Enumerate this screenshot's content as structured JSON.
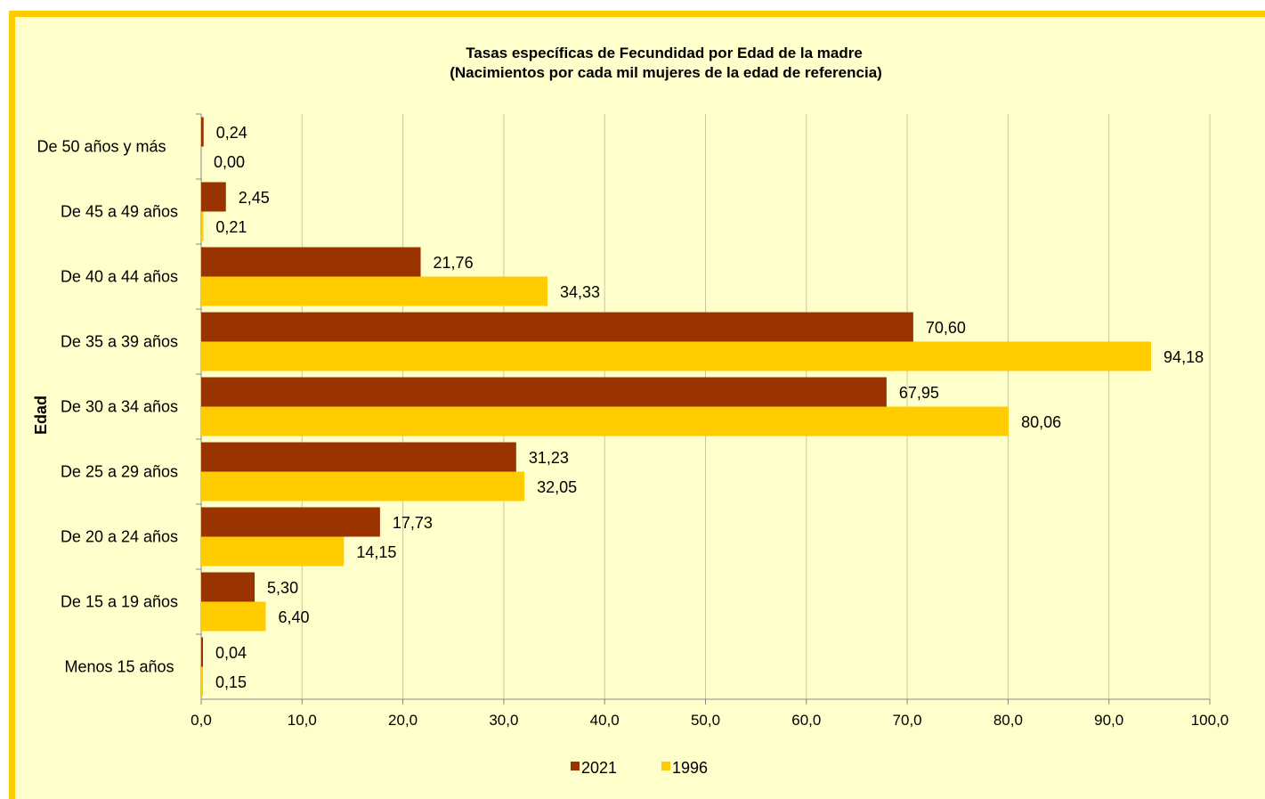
{
  "chart_data": {
    "type": "bar",
    "orientation": "horizontal",
    "title": "Tasas específicas de Fecundidad por Edad de la madre",
    "subtitle": "(Nacimientos por cada mil mujeres de la edad de referencia)",
    "ylabel": "Edad",
    "xlabel": "",
    "xlim": [
      0,
      100
    ],
    "x_ticks": [
      "0,0",
      "10,0",
      "20,0",
      "30,0",
      "40,0",
      "50,0",
      "60,0",
      "70,0",
      "80,0",
      "90,0",
      "100,0"
    ],
    "grid": "vertical",
    "legend_position": "bottom",
    "categories": [
      "Menos 15 años",
      "De 15 a 19 años",
      "De 20 a 24 años",
      "De 25 a 29 años",
      "De 30 a 34 años",
      "De 35 a 39 años",
      "De 40 a 44 años",
      "De 45 a 49 años",
      "De 50 años y más"
    ],
    "series": [
      {
        "name": "2021",
        "color": "#993300",
        "values": [
          0.04,
          5.3,
          17.73,
          31.23,
          67.95,
          70.6,
          21.76,
          2.45,
          0.24
        ],
        "labels": [
          "0,04",
          "5,30",
          "17,73",
          "31,23",
          "67,95",
          "70,60",
          "21,76",
          "2,45",
          "0,24"
        ]
      },
      {
        "name": "1996",
        "color": "#ffcc00",
        "values": [
          0.15,
          6.4,
          14.15,
          32.05,
          80.06,
          94.18,
          34.33,
          0.21,
          0.0
        ],
        "labels": [
          "0,15",
          "6,40",
          "14,15",
          "32,05",
          "80,06",
          "94,18",
          "34,33",
          "0,21",
          "0,00"
        ]
      }
    ]
  },
  "colors": {
    "background": "#ffffcc",
    "frame_border": "#ffcc00",
    "gridline": "#c8c8a0"
  }
}
